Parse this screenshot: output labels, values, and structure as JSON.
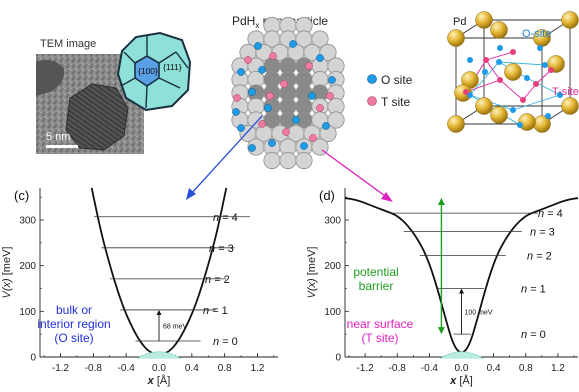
{
  "top": {
    "tem_label": "TEM image",
    "scale_label": "5 nm",
    "facet_100": "{100}",
    "facet_111": "{111}",
    "nano_title_pre": "PdH",
    "nano_title_sub": "x",
    "nano_title_post": " nanoparticle",
    "legend_o": "O site",
    "legend_t": "T site",
    "lattice_pd": "Pd",
    "lattice_o": "O-site",
    "lattice_t": "T-site"
  },
  "colors": {
    "o_site": "#1e9be8",
    "t_site": "#e8407a",
    "pd_atom": "#d9a520",
    "arrow_left": "#2b50d8",
    "arrow_right": "#e020c0",
    "barrier": "#1b9e1b",
    "bulk_text": "#2030e0",
    "surface_text": "#e020c0"
  },
  "chart_data": [
    {
      "type": "line",
      "panel": "(c)",
      "xlabel_var": "x",
      "xlabel_unit": " [Å]",
      "ylabel_var": "V(x)",
      "ylabel_unit": " [meV]",
      "xlim": [
        -1.45,
        1.45
      ],
      "ylim": [
        0,
        370
      ],
      "xticks": [
        -1.2,
        -0.8,
        -0.4,
        0.0,
        0.4,
        0.8,
        1.2
      ],
      "xtick_labels": [
        "-1.2",
        "-0.8",
        "-0.4",
        "0.0",
        "0.4",
        "0.8",
        "1.2"
      ],
      "yticks": [
        0,
        100,
        200,
        300
      ],
      "ytick_labels": [
        "0",
        "100",
        "200",
        "300"
      ],
      "curve": {
        "x": [
          -0.82,
          -0.75,
          -0.7,
          -0.65,
          -0.6,
          -0.55,
          -0.5,
          -0.45,
          -0.4,
          -0.35,
          -0.3,
          -0.25,
          -0.2,
          -0.15,
          -0.1,
          -0.05,
          0.0,
          0.05,
          0.1,
          0.15,
          0.2,
          0.25,
          0.3,
          0.35,
          0.4,
          0.45,
          0.5,
          0.55,
          0.6,
          0.65,
          0.7,
          0.75,
          0.82
        ],
        "y": [
          370,
          310,
          270,
          235,
          202,
          172,
          143,
          117,
          94,
          74,
          56,
          40,
          27,
          17,
          10,
          7,
          5,
          7,
          10,
          17,
          27,
          40,
          56,
          74,
          94,
          117,
          143,
          172,
          202,
          235,
          270,
          310,
          370
        ]
      },
      "levels": [
        {
          "n_label": "n = 0",
          "energy": 35
        },
        {
          "n_label": "n = 1",
          "energy": 103
        },
        {
          "n_label": "n = 2",
          "energy": 171
        },
        {
          "n_label": "n = 3",
          "energy": 239
        },
        {
          "n_label": "n = 4",
          "energy": 307
        }
      ],
      "spacing_label": "68 meV",
      "region_text": [
        "bulk or",
        "interior region",
        "(O site)"
      ]
    },
    {
      "type": "line",
      "panel": "(d)",
      "xlabel_var": "x",
      "xlabel_unit": " [Å]",
      "ylabel_var": "V(x)",
      "ylabel_unit": " [meV]",
      "xlim": [
        -1.45,
        1.45
      ],
      "ylim": [
        0,
        370
      ],
      "xticks": [
        -1.2,
        -0.8,
        -0.4,
        0.0,
        0.4,
        0.8,
        1.2
      ],
      "xtick_labels": [
        "-1.2",
        "-0.8",
        "-0.4",
        "0.0",
        "0.4",
        "0.8",
        "1.2"
      ],
      "yticks": [
        0,
        100,
        200,
        300
      ],
      "ytick_labels": [
        "0",
        "100",
        "200",
        "300"
      ],
      "curve": {
        "x": [
          -1.45,
          -1.3,
          -1.1,
          -0.95,
          -0.8,
          -0.65,
          -0.5,
          -0.4,
          -0.3,
          -0.2,
          -0.1,
          0.0,
          0.1,
          0.2,
          0.3,
          0.4,
          0.5,
          0.65,
          0.8,
          0.95,
          1.1,
          1.3,
          1.45
        ],
        "y": [
          348,
          344,
          330,
          320,
          310,
          285,
          245,
          205,
          150,
          85,
          25,
          5,
          25,
          85,
          150,
          205,
          245,
          285,
          310,
          320,
          330,
          344,
          348
        ]
      },
      "levels": [
        {
          "n_label": "n = 0",
          "energy": 50
        },
        {
          "n_label": "n = 1",
          "energy": 150
        },
        {
          "n_label": "n = 2",
          "energy": 222
        },
        {
          "n_label": "n = 3",
          "energy": 275
        },
        {
          "n_label": "n = 4",
          "energy": 315
        }
      ],
      "spacing_label": "100 meV",
      "barrier_text": [
        "potential",
        "barrier"
      ],
      "region_text": [
        "near surface",
        "(T site)"
      ]
    }
  ]
}
